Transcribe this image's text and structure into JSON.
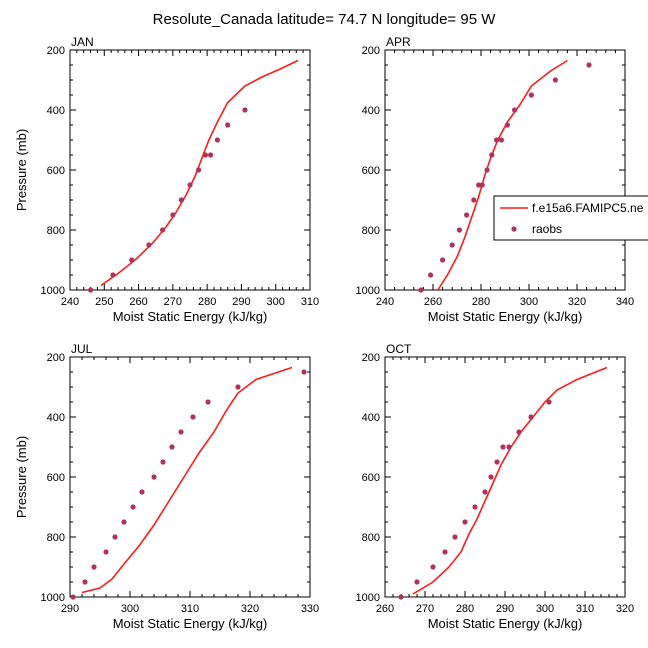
{
  "title": "Resolute_Canada  latitude= 74.7 N longitude= 95 W",
  "colors": {
    "model_line": "#ff1a1a",
    "obs_marker": "#b0335e",
    "axis": "#000000"
  },
  "legend": {
    "placement": "right of APR panel",
    "model_label": "f.e15a6.FAMIPC5.ne",
    "obs_label": "raobs"
  },
  "chart_data": [
    {
      "type": "line",
      "panel": "JAN",
      "xlabel": "Moist Static Energy (kJ/kg)",
      "ylabel": "Pressure (mb)",
      "xlim": [
        240,
        310
      ],
      "ylim": [
        1000,
        200
      ],
      "xticks": [
        240,
        250,
        260,
        270,
        280,
        290,
        300,
        310
      ],
      "yticks": [
        200,
        400,
        600,
        800,
        1000
      ],
      "series": [
        {
          "name": "f.e15a6.FAMIPC5.ne",
          "kind": "line",
          "x": [
            249,
            254,
            259,
            264,
            268,
            271,
            274,
            276.5,
            278.5,
            280.5,
            283,
            286,
            291,
            296,
            301,
            306.5
          ],
          "y": [
            985,
            945,
            900,
            845,
            790,
            740,
            680,
            620,
            560,
            500,
            440,
            375,
            320,
            290,
            265,
            235
          ]
        },
        {
          "name": "raobs",
          "kind": "marker",
          "x": [
            246,
            252.5,
            258,
            263,
            267,
            270,
            272.5,
            275,
            277.5,
            279.5,
            281,
            283,
            286,
            291
          ],
          "y": [
            1000,
            950,
            900,
            850,
            800,
            750,
            700,
            650,
            600,
            550,
            550,
            500,
            450,
            400
          ]
        }
      ]
    },
    {
      "type": "line",
      "panel": "APR",
      "xlabel": "Moist Static Energy (kJ/kg)",
      "ylabel": "",
      "xlim": [
        240,
        340
      ],
      "ylim": [
        1000,
        200
      ],
      "xticks": [
        240,
        260,
        280,
        300,
        320,
        340
      ],
      "yticks": [
        200,
        400,
        600,
        800,
        1000
      ],
      "series": [
        {
          "name": "f.e15a6.FAMIPC5.ne",
          "kind": "line",
          "x": [
            262,
            266,
            270,
            273,
            276,
            279,
            281.5,
            284,
            287,
            291,
            296,
            301,
            309,
            316
          ],
          "y": [
            1000,
            950,
            890,
            830,
            760,
            690,
            620,
            560,
            500,
            440,
            385,
            320,
            270,
            235
          ]
        },
        {
          "name": "raobs",
          "kind": "marker",
          "x": [
            255,
            259,
            264,
            268,
            271,
            274,
            277,
            279,
            280.5,
            282.5,
            284.5,
            286.5,
            288.5,
            291,
            294,
            301,
            311,
            325
          ],
          "y": [
            1000,
            950,
            900,
            850,
            800,
            750,
            700,
            650,
            650,
            600,
            550,
            500,
            500,
            450,
            400,
            350,
            300,
            250
          ]
        }
      ]
    },
    {
      "type": "line",
      "panel": "JUL",
      "xlabel": "Moist Static Energy (kJ/kg)",
      "ylabel": "Pressure (mb)",
      "xlim": [
        290,
        330
      ],
      "ylim": [
        1000,
        200
      ],
      "xticks": [
        290,
        300,
        310,
        320,
        330
      ],
      "yticks": [
        200,
        400,
        600,
        800,
        1000
      ],
      "series": [
        {
          "name": "f.e15a6.FAMIPC5.ne",
          "kind": "line",
          "x": [
            292,
            295,
            297,
            299,
            301.5,
            304,
            306.5,
            309,
            311.5,
            314,
            316,
            318,
            321,
            327
          ],
          "y": [
            985,
            970,
            940,
            890,
            830,
            760,
            680,
            600,
            520,
            450,
            380,
            320,
            275,
            235
          ]
        },
        {
          "name": "raobs",
          "kind": "marker",
          "x": [
            290.5,
            292.5,
            294,
            296,
            297.5,
            299,
            300.5,
            302,
            304,
            305.5,
            307,
            308.5,
            310.5,
            313,
            318,
            329
          ],
          "y": [
            1000,
            950,
            900,
            850,
            800,
            750,
            700,
            650,
            600,
            550,
            500,
            450,
            400,
            350,
            300,
            250
          ]
        }
      ]
    },
    {
      "type": "line",
      "panel": "OCT",
      "xlabel": "Moist Static Energy (kJ/kg)",
      "ylabel": "",
      "xlim": [
        260,
        320
      ],
      "ylim": [
        1000,
        200
      ],
      "xticks": [
        260,
        270,
        280,
        290,
        300,
        310,
        320
      ],
      "yticks": [
        200,
        400,
        600,
        800,
        1000
      ],
      "series": [
        {
          "name": "f.e15a6.FAMIPC5.ne",
          "kind": "line",
          "x": [
            267,
            272,
            276,
            279,
            281,
            283,
            285,
            287,
            289,
            291.5,
            294,
            297,
            300,
            303,
            308,
            315.5
          ],
          "y": [
            990,
            950,
            900,
            850,
            790,
            740,
            680,
            620,
            560,
            500,
            450,
            400,
            350,
            310,
            275,
            235
          ]
        },
        {
          "name": "raobs",
          "kind": "marker",
          "x": [
            264,
            268,
            272,
            275,
            277.5,
            280,
            282.5,
            285,
            286.5,
            288,
            289.5,
            291,
            293.5,
            296.5,
            301
          ],
          "y": [
            1000,
            950,
            900,
            850,
            800,
            750,
            700,
            650,
            600,
            550,
            500,
            500,
            450,
            400,
            350
          ]
        }
      ]
    }
  ]
}
